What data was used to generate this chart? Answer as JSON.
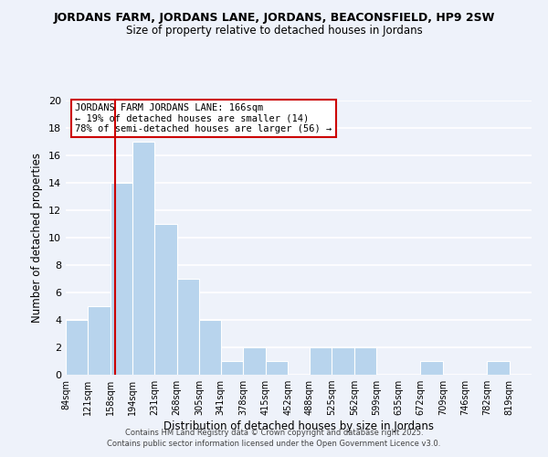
{
  "title1": "JORDANS FARM, JORDANS LANE, JORDANS, BEACONSFIELD, HP9 2SW",
  "title2": "Size of property relative to detached houses in Jordans",
  "xlabel": "Distribution of detached houses by size in Jordans",
  "ylabel": "Number of detached properties",
  "bin_labels": [
    "84sqm",
    "121sqm",
    "158sqm",
    "194sqm",
    "231sqm",
    "268sqm",
    "305sqm",
    "341sqm",
    "378sqm",
    "415sqm",
    "452sqm",
    "488sqm",
    "525sqm",
    "562sqm",
    "599sqm",
    "635sqm",
    "672sqm",
    "709sqm",
    "746sqm",
    "782sqm",
    "819sqm"
  ],
  "bin_edges": [
    84,
    121,
    158,
    194,
    231,
    268,
    305,
    341,
    378,
    415,
    452,
    488,
    525,
    562,
    599,
    635,
    672,
    709,
    746,
    782,
    819
  ],
  "bar_heights": [
    4,
    5,
    14,
    17,
    11,
    7,
    4,
    1,
    2,
    1,
    0,
    2,
    2,
    2,
    0,
    0,
    1,
    0,
    0,
    1
  ],
  "bar_color": "#b8d4ed",
  "vline_x": 166,
  "vline_color": "#cc0000",
  "ylim": [
    0,
    20
  ],
  "yticks": [
    0,
    2,
    4,
    6,
    8,
    10,
    12,
    14,
    16,
    18,
    20
  ],
  "annotation_line1": "JORDANS FARM JORDANS LANE: 166sqm",
  "annotation_line2": "← 19% of detached houses are smaller (14)",
  "annotation_line3": "78% of semi-detached houses are larger (56) →",
  "bg_color": "#eef2fa",
  "grid_color": "#ffffff",
  "footnote1": "Contains HM Land Registry data © Crown copyright and database right 2025.",
  "footnote2": "Contains public sector information licensed under the Open Government Licence v3.0."
}
